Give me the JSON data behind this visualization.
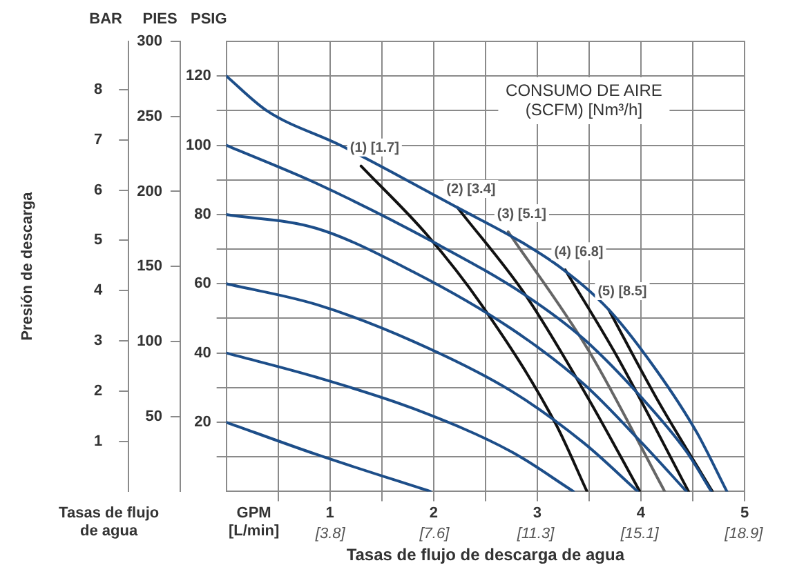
{
  "chart_data": {
    "type": "line",
    "xlabel": "Tasas de flujo de descarga de agua",
    "ylabel": "PSIG",
    "y2label": "PIES",
    "y3label": "Presión de descarga",
    "annotations": [
      "CONSUMO DE AIRE\n(SCFM) [Nm³/h]",
      "GPM\n[L/min]",
      "Tasas de flujo\nde agua",
      "BAR"
    ],
    "xlim": [
      0,
      5
    ],
    "xticks": [
      {
        "value": 0.5,
        "label": null
      },
      1,
      {
        "value": 1.5,
        "label": null
      },
      2,
      {
        "value": 2.5,
        "label": null
      },
      3,
      {
        "value": 3.5,
        "label": null
      },
      4,
      {
        "value": 4.5,
        "label": null
      },
      5
    ],
    "x2lim": [
      0,
      18.93
    ],
    "x2ticks": [
      {
        "value": 3.8,
        "label": "[3.8]"
      },
      {
        "value": 7.6,
        "label": "[7.6]"
      },
      {
        "value": 11.3,
        "label": "[11.3]"
      },
      {
        "value": 15.1,
        "label": "[15.1]"
      },
      {
        "value": 18.9,
        "label": "[18.9]"
      }
    ],
    "ylim": [
      0,
      130
    ],
    "yticks": [
      {
        "value": 10,
        "label": null
      },
      20,
      {
        "value": 30,
        "label": null
      },
      40,
      {
        "value": 50,
        "label": null
      },
      60,
      {
        "value": 70,
        "label": null
      },
      80,
      {
        "value": 90,
        "label": null
      },
      100,
      {
        "value": 110,
        "label": null
      },
      120
    ],
    "y2lim": [
      0,
      300
    ],
    "y2ticks": [
      50,
      100,
      150,
      200,
      250,
      300
    ],
    "y3lim": [
      0,
      8.96
    ],
    "y3ticks": [
      1,
      2,
      3,
      4,
      5,
      6,
      7,
      8
    ],
    "grid": true,
    "legend": false,
    "marker": "none",
    "series": [
      {
        "color": "#1d4e89",
        "x": [
          0,
          0.39,
          1.1,
          2.23,
          2.85,
          3.21,
          3.69,
          4.15,
          4.54,
          4.83
        ],
        "values": [
          120,
          110,
          100,
          82,
          72,
          65,
          52.5,
          35,
          17,
          0
        ]
      },
      {
        "color": "#1d4e89",
        "x": [
          0,
          0.87,
          2.0,
          2.89,
          3.45,
          4.01,
          4.44,
          4.68
        ],
        "values": [
          100,
          89,
          72,
          56.6,
          44,
          27,
          11.5,
          0
        ]
      },
      {
        "color": "#1d4e89",
        "x": [
          0,
          0.87,
          1.8,
          2.75,
          3.45,
          4.01,
          4.44
        ],
        "values": [
          80,
          76,
          63.5,
          47,
          31,
          14,
          0
        ]
      },
      {
        "color": "#1d4e89",
        "x": [
          0,
          0.87,
          1.8,
          2.75,
          3.45,
          3.97
        ],
        "values": [
          60,
          54,
          43.4,
          29,
          14,
          0
        ]
      },
      {
        "color": "#1d4e89",
        "x": [
          0,
          0.87,
          1.8,
          2.75,
          3.35
        ],
        "values": [
          40,
          33,
          24,
          11.5,
          0
        ]
      },
      {
        "color": "#1d4e89",
        "x": [
          0,
          0.87,
          1.97
        ],
        "values": [
          20,
          10.7,
          0
        ]
      },
      {
        "name": "(1) [1.7]",
        "color": "#111111",
        "x": [
          1.3,
          1.94,
          2.46,
          3.17,
          3.48
        ],
        "values": [
          94,
          74,
          54,
          20,
          0
        ]
      },
      {
        "name": "(2) [3.4]",
        "color": "#111111",
        "x": [
          2.23,
          2.89,
          3.49,
          3.99
        ],
        "values": [
          82,
          56.6,
          27,
          0
        ]
      },
      {
        "name": "(3) [5.1]",
        "color": "#666666",
        "x": [
          2.72,
          3.49,
          4.23
        ],
        "values": [
          75,
          41,
          0
        ]
      },
      {
        "name": "(4) [6.8]",
        "color": "#111111",
        "x": [
          3.27,
          3.77,
          4.46
        ],
        "values": [
          64,
          39,
          0
        ]
      },
      {
        "name": "(5) [8.5]",
        "color": "#111111",
        "x": [
          3.69,
          4.15,
          4.69
        ],
        "values": [
          52.5,
          27,
          0
        ]
      }
    ]
  }
}
